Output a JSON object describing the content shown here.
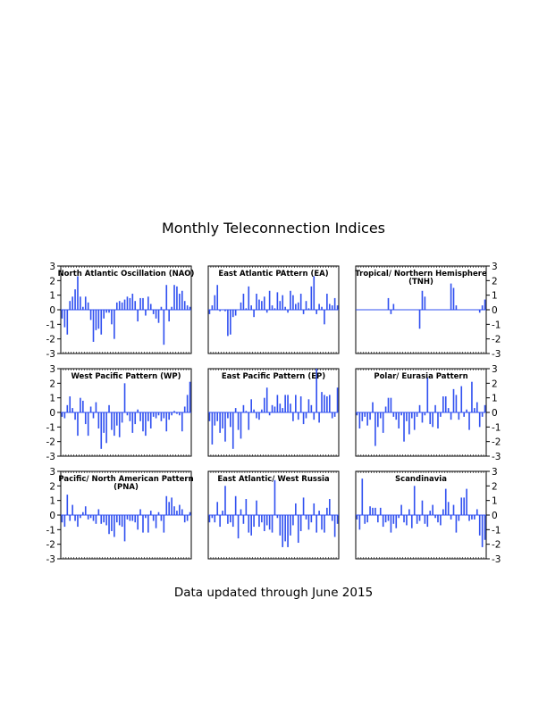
{
  "page": {
    "title": "Monthly Teleconnection Indices",
    "footer": "Data updated through June 2015"
  },
  "colors": {
    "bar": "#3050f0",
    "frame": "#000000"
  },
  "chart_data": [
    {
      "type": "bar",
      "title": "North Atlantic Oscillation (NAO)",
      "ylim": [
        -3,
        3
      ],
      "yticks": [
        -3,
        -2,
        -1,
        0,
        1,
        2,
        3
      ],
      "y_tick_side": "left",
      "values": [
        -0.6,
        -1.2,
        -1.7,
        0.6,
        0.9,
        1.4,
        2.3,
        0.9,
        0.2,
        0.9,
        0.5,
        -0.7,
        -2.2,
        -1.4,
        -1.3,
        -1.7,
        -0.6,
        -0.2,
        -0.2,
        -1.0,
        -2.0,
        0.5,
        0.6,
        0.5,
        0.7,
        0.9,
        0.8,
        1.1,
        0.6,
        -0.8,
        0.8,
        0.8,
        -0.4,
        0.9,
        0.4,
        -0.3,
        -0.6,
        -0.9,
        0.2,
        -2.4,
        1.7,
        -0.8,
        0.2,
        1.7,
        1.6,
        1.1,
        1.3,
        0.6,
        0.3,
        0.2
      ]
    },
    {
      "type": "bar",
      "title": "East Atlantic PAttern (EA)",
      "ylim": [
        -3,
        3
      ],
      "values": [
        -0.3,
        0.3,
        1.0,
        1.7,
        -0.1,
        0.0,
        -0.1,
        -1.8,
        -1.7,
        -0.5,
        -0.4,
        0.0,
        0.5,
        1.1,
        0.1,
        1.6,
        0.3,
        -0.5,
        1.1,
        0.7,
        0.6,
        0.9,
        -0.2,
        1.3,
        0.3,
        0.1,
        1.2,
        0.6,
        1.0,
        0.2,
        -0.2,
        1.3,
        1.0,
        0.4,
        0.5,
        1.1,
        -0.3,
        0.6,
        0.1,
        1.6,
        2.3,
        -0.3,
        0.4,
        0.2,
        -1.0,
        1.1,
        0.4,
        0.3,
        0.8,
        0.3
      ]
    },
    {
      "type": "bar",
      "title": "Tropical/ Northern Hemisphere (TNH)",
      "ylim": [
        -3,
        3
      ],
      "yticks": [
        -3,
        -2,
        -1,
        0,
        1,
        2,
        3
      ],
      "y_tick_side": "right",
      "values": [
        0,
        0,
        0,
        0,
        0,
        0,
        0,
        0,
        0,
        0,
        0,
        0,
        0.8,
        -0.3,
        0.4,
        0,
        0,
        0,
        0,
        0,
        0,
        0,
        0,
        0,
        -1.3,
        1.3,
        0.9,
        0,
        0,
        0,
        0,
        0,
        0,
        0,
        0,
        0,
        1.8,
        1.5,
        0.3,
        0,
        0,
        0,
        0,
        0,
        0,
        0,
        0,
        -0.2,
        0.3,
        0.7
      ]
    },
    {
      "type": "bar",
      "title": "West Pacific Pattern (WP)",
      "ylim": [
        -3,
        3
      ],
      "yticks": [
        -3,
        -2,
        -1,
        0,
        1,
        2,
        3
      ],
      "y_tick_side": "left",
      "values": [
        -0.3,
        -0.4,
        0.5,
        1.1,
        0.3,
        -0.5,
        -1.6,
        1.0,
        0.8,
        -0.8,
        -1.6,
        0.4,
        -0.4,
        0.7,
        -1.1,
        -2.5,
        -1.4,
        -2.1,
        0.5,
        -1.2,
        -1.6,
        -0.9,
        -1.7,
        -0.7,
        2.0,
        -0.2,
        -0.6,
        -1.4,
        -0.8,
        0.2,
        -0.6,
        -1.3,
        -1.6,
        -0.6,
        -1.1,
        -0.3,
        -0.4,
        -0.2,
        -0.6,
        -0.4,
        -1.3,
        -0.5,
        -0.2,
        0.1,
        -0.1,
        -0.2,
        -1.3,
        0.4,
        1.2,
        2.1
      ]
    },
    {
      "type": "bar",
      "title": "East Pacific Pattern (EP)",
      "ylim": [
        -3,
        3
      ],
      "values": [
        -0.6,
        -2.2,
        -0.9,
        -0.6,
        -1.4,
        -1.1,
        -2.0,
        -0.4,
        -1.0,
        -2.5,
        0.3,
        -1.2,
        -1.8,
        0.5,
        0.1,
        -1.2,
        0.9,
        0.2,
        -0.4,
        -0.5,
        0.2,
        1.0,
        1.7,
        -0.2,
        0.5,
        0.4,
        1.2,
        0.6,
        0.3,
        1.2,
        1.2,
        0.6,
        -0.6,
        1.2,
        -0.5,
        1.1,
        -0.8,
        -0.4,
        0.9,
        0.5,
        -0.5,
        3.0,
        -0.7,
        1.4,
        1.2,
        1.1,
        1.2,
        -0.4,
        -0.3,
        1.7
      ]
    },
    {
      "type": "bar",
      "title": "Polar/ Eurasia Pattern",
      "ylim": [
        -3,
        3
      ],
      "yticks": [
        -3,
        -2,
        -1,
        0,
        1,
        2,
        3
      ],
      "y_tick_side": "right",
      "values": [
        -0.2,
        -1.1,
        -0.6,
        -0.3,
        -0.9,
        -0.5,
        0.7,
        -2.3,
        -1.0,
        -0.4,
        -1.4,
        0.4,
        1.0,
        1.0,
        -0.3,
        -0.5,
        -1.1,
        -0.2,
        -2.0,
        -0.6,
        -1.5,
        -0.4,
        -1.2,
        -0.3,
        0.5,
        -0.7,
        -0.2,
        2.4,
        -0.8,
        -1.0,
        0.5,
        -1.1,
        -0.3,
        1.1,
        1.1,
        0.3,
        -0.5,
        1.6,
        1.2,
        -0.5,
        1.8,
        -0.3,
        0.2,
        -1.2,
        2.1,
        0.3,
        0.7,
        -1.0,
        -0.3,
        0.5
      ]
    },
    {
      "type": "bar",
      "title": "Pacific/ North American Pattern (PNA)",
      "ylim": [
        -3,
        3
      ],
      "yticks": [
        -3,
        -2,
        -1,
        0,
        1,
        2,
        3
      ],
      "y_tick_side": "left",
      "values": [
        -0.5,
        -0.8,
        1.4,
        -0.4,
        0.7,
        -0.4,
        -0.8,
        -0.2,
        0.2,
        0.6,
        -0.3,
        -0.2,
        -0.4,
        -0.6,
        0.4,
        -0.6,
        -0.5,
        -0.7,
        -1.3,
        -1.1,
        -1.5,
        -0.5,
        -0.7,
        -0.8,
        -1.8,
        -0.3,
        -0.4,
        -0.4,
        -0.5,
        -1.0,
        0.4,
        -1.2,
        -0.2,
        -1.2,
        0.3,
        -0.4,
        -0.9,
        0.2,
        -0.4,
        -1.2,
        1.3,
        0.9,
        1.2,
        0.6,
        0.3,
        0.7,
        0.4,
        -0.5,
        -0.4,
        0.2
      ]
    },
    {
      "type": "bar",
      "title": "East Atlantic/ West Russia",
      "ylim": [
        -3,
        3
      ],
      "values": [
        -0.5,
        -0.2,
        -0.5,
        0.9,
        -0.8,
        0.3,
        2.0,
        -0.6,
        -0.5,
        -0.8,
        1.3,
        -1.6,
        0.4,
        -0.6,
        1.1,
        -1.2,
        -1.4,
        -0.8,
        1.0,
        -0.8,
        -0.5,
        -1.1,
        -0.7,
        -1.0,
        -1.2,
        2.4,
        -0.2,
        -1.4,
        -2.2,
        -1.8,
        -2.2,
        -1.4,
        -0.7,
        0.8,
        -1.9,
        -1.1,
        1.2,
        -0.3,
        -1.0,
        -0.5,
        0.8,
        -1.2,
        0.3,
        -1.0,
        -1.2,
        0.5,
        1.1,
        -0.4,
        -1.5,
        -0.6
      ]
    },
    {
      "type": "bar",
      "title": "Scandinavia",
      "ylim": [
        -3,
        3
      ],
      "yticks": [
        -3,
        -2,
        -1,
        0,
        1,
        2,
        3
      ],
      "y_tick_side": "right",
      "values": [
        -0.3,
        -1.0,
        2.5,
        -0.6,
        -0.5,
        0.6,
        0.5,
        0.5,
        -0.5,
        0.5,
        -0.8,
        -0.5,
        -0.4,
        -1.2,
        -0.6,
        -0.9,
        -0.2,
        0.7,
        -0.5,
        -0.7,
        0.4,
        -0.9,
        2.0,
        -0.6,
        -0.4,
        1.0,
        -0.6,
        -0.8,
        0.3,
        0.7,
        -0.2,
        -0.5,
        -0.7,
        0.4,
        1.8,
        0.9,
        -0.3,
        0.7,
        -1.2,
        -0.4,
        1.2,
        1.2,
        1.8,
        -0.4,
        -0.3,
        -0.3,
        0.4,
        -1.4,
        -2.2,
        -1.7
      ]
    }
  ]
}
